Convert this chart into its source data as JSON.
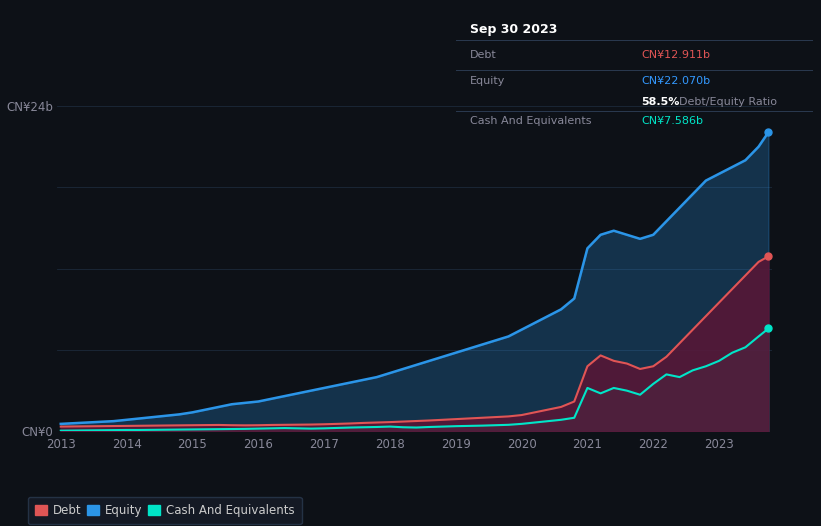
{
  "bg_color": "#0d1117",
  "plot_bg_color": "#0d1117",
  "grid_color": "#1c2a3a",
  "title_box": {
    "date": "Sep 30 2023",
    "debt_label": "Debt",
    "debt_value": "CN¥12.911b",
    "debt_color": "#e05555",
    "equity_label": "Equity",
    "equity_value": "CN¥22.070b",
    "equity_color": "#3399ff",
    "ratio_bold": "58.5%",
    "ratio_text": "Debt/Equity Ratio",
    "cash_label": "Cash And Equivalents",
    "cash_value": "CN¥7.586b",
    "cash_color": "#00e5c8",
    "label_color": "#888899",
    "box_bg": "#0a0e18",
    "box_edge": "#2a3a50"
  },
  "ylabel_top": "CN¥24b",
  "ylabel_bottom": "CN¥0",
  "xlabel_ticks": [
    "2013",
    "2014",
    "2015",
    "2016",
    "2017",
    "2018",
    "2019",
    "2020",
    "2021",
    "2022",
    "2023"
  ],
  "ylim": [
    0,
    26
  ],
  "debt_color": "#e05555",
  "equity_color": "#2b95e8",
  "cash_color": "#00e5c8",
  "years": [
    2013.0,
    2013.2,
    2013.4,
    2013.6,
    2013.8,
    2014.0,
    2014.2,
    2014.4,
    2014.6,
    2014.8,
    2015.0,
    2015.2,
    2015.4,
    2015.6,
    2015.8,
    2016.0,
    2016.2,
    2016.4,
    2016.6,
    2016.8,
    2017.0,
    2017.2,
    2017.4,
    2017.6,
    2017.8,
    2018.0,
    2018.2,
    2018.4,
    2018.6,
    2018.8,
    2019.0,
    2019.2,
    2019.4,
    2019.6,
    2019.8,
    2020.0,
    2020.2,
    2020.4,
    2020.6,
    2020.8,
    2021.0,
    2021.2,
    2021.4,
    2021.6,
    2021.8,
    2022.0,
    2022.2,
    2022.4,
    2022.6,
    2022.8,
    2023.0,
    2023.2,
    2023.4,
    2023.6,
    2023.75
  ],
  "debt": [
    0.35,
    0.36,
    0.37,
    0.38,
    0.39,
    0.4,
    0.41,
    0.42,
    0.43,
    0.44,
    0.45,
    0.46,
    0.47,
    0.45,
    0.44,
    0.45,
    0.47,
    0.48,
    0.49,
    0.5,
    0.52,
    0.55,
    0.58,
    0.62,
    0.65,
    0.68,
    0.72,
    0.76,
    0.8,
    0.85,
    0.9,
    0.95,
    1.0,
    1.05,
    1.1,
    1.2,
    1.4,
    1.6,
    1.8,
    2.2,
    4.8,
    5.6,
    5.2,
    5.0,
    4.6,
    4.8,
    5.5,
    6.5,
    7.5,
    8.5,
    9.5,
    10.5,
    11.5,
    12.5,
    12.911
  ],
  "equity": [
    0.55,
    0.6,
    0.65,
    0.7,
    0.75,
    0.85,
    0.95,
    1.05,
    1.15,
    1.25,
    1.4,
    1.6,
    1.8,
    2.0,
    2.1,
    2.2,
    2.4,
    2.6,
    2.8,
    3.0,
    3.2,
    3.4,
    3.6,
    3.8,
    4.0,
    4.3,
    4.6,
    4.9,
    5.2,
    5.5,
    5.8,
    6.1,
    6.4,
    6.7,
    7.0,
    7.5,
    8.0,
    8.5,
    9.0,
    9.8,
    13.5,
    14.5,
    14.8,
    14.5,
    14.2,
    14.5,
    15.5,
    16.5,
    17.5,
    18.5,
    19.0,
    19.5,
    20.0,
    21.0,
    22.07
  ],
  "cash": [
    0.05,
    0.06,
    0.07,
    0.08,
    0.09,
    0.1,
    0.1,
    0.11,
    0.12,
    0.13,
    0.14,
    0.15,
    0.16,
    0.17,
    0.18,
    0.2,
    0.22,
    0.24,
    0.22,
    0.2,
    0.22,
    0.25,
    0.28,
    0.3,
    0.32,
    0.35,
    0.3,
    0.28,
    0.32,
    0.35,
    0.38,
    0.4,
    0.42,
    0.45,
    0.48,
    0.55,
    0.65,
    0.75,
    0.85,
    1.0,
    3.2,
    2.8,
    3.2,
    3.0,
    2.7,
    3.5,
    4.2,
    4.0,
    4.5,
    4.8,
    5.2,
    5.8,
    6.2,
    7.0,
    7.586
  ],
  "legend_items": [
    {
      "label": "Debt",
      "color": "#e05555"
    },
    {
      "label": "Equity",
      "color": "#2b95e8"
    },
    {
      "label": "Cash And Equivalents",
      "color": "#00e5c8"
    }
  ]
}
